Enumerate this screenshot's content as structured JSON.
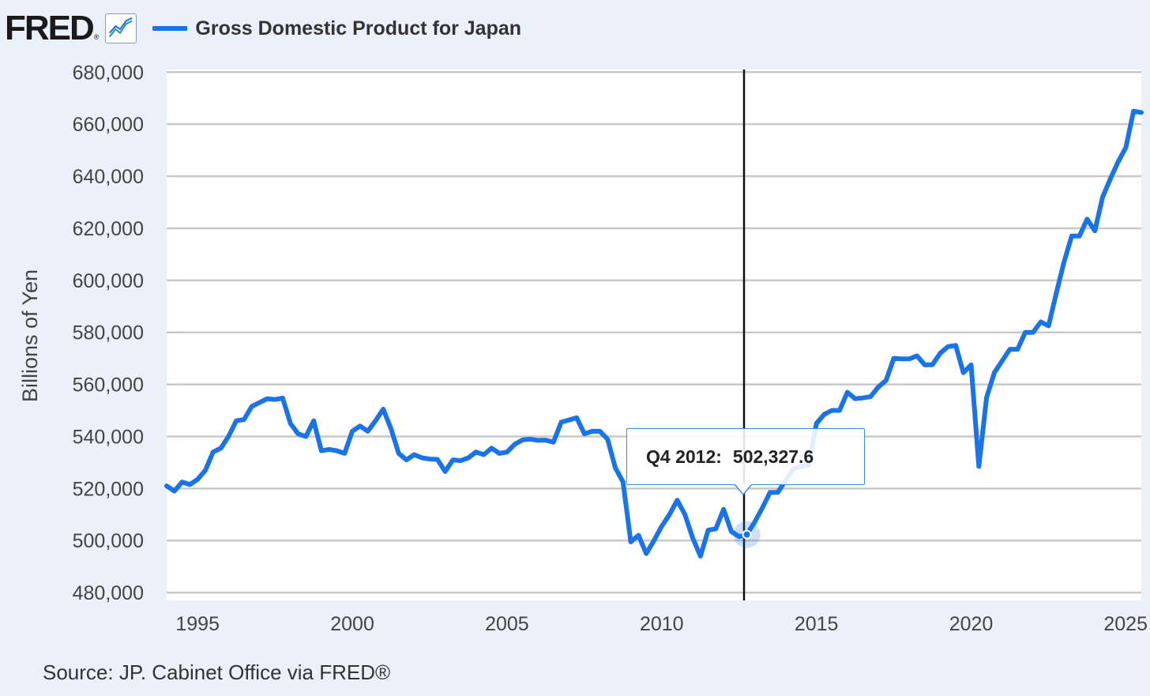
{
  "header": {
    "logo_text": "FRED",
    "logo_reg": "®",
    "logo_icon": "line-graph-icon",
    "legend_label": "Gross Domestic Product for Japan",
    "series_color": "#1a73e8"
  },
  "source_text": "Source: JP. Cabinet Office via FRED®",
  "tooltip": {
    "period": "Q4 2012:",
    "value": "502,327.6"
  },
  "chart_data": {
    "type": "line",
    "title": "Gross Domestic Product for Japan",
    "ylabel": "Billions of Yen",
    "xlabel": "",
    "xlim": [
      1994.0,
      2025.5
    ],
    "ylim": [
      477000,
      681000
    ],
    "x_ticks": [
      1995,
      2000,
      2005,
      2010,
      2015,
      2020,
      2025
    ],
    "y_ticks": [
      480000,
      500000,
      520000,
      540000,
      560000,
      580000,
      600000,
      620000,
      640000,
      660000,
      680000
    ],
    "y_tick_labels": [
      "480,000",
      "500,000",
      "520,000",
      "540,000",
      "560,000",
      "580,000",
      "600,000",
      "620,000",
      "640,000",
      "660,000",
      "680,000"
    ],
    "x_tick_labels": [
      "1995",
      "2000",
      "2005",
      "2010",
      "2015",
      "2020",
      "2025"
    ],
    "grid": "horizontal",
    "legend": "top-left",
    "highlight": {
      "x": 2012.75,
      "y": 502327.6
    },
    "series": [
      {
        "name": "Gross Domestic Product for Japan",
        "color": "#1a73e8",
        "x": [
          1994.0,
          1994.25,
          1994.5,
          1994.75,
          1995.0,
          1995.25,
          1995.5,
          1995.75,
          1996.0,
          1996.25,
          1996.5,
          1996.75,
          1997.0,
          1997.25,
          1997.5,
          1997.75,
          1998.0,
          1998.25,
          1998.5,
          1998.75,
          1999.0,
          1999.25,
          1999.5,
          1999.75,
          2000.0,
          2000.25,
          2000.5,
          2000.75,
          2001.0,
          2001.25,
          2001.5,
          2001.75,
          2002.0,
          2002.25,
          2002.5,
          2002.75,
          2003.0,
          2003.25,
          2003.5,
          2003.75,
          2004.0,
          2004.25,
          2004.5,
          2004.75,
          2005.0,
          2005.25,
          2005.5,
          2005.75,
          2006.0,
          2006.25,
          2006.5,
          2006.75,
          2007.0,
          2007.25,
          2007.5,
          2007.75,
          2008.0,
          2008.25,
          2008.5,
          2008.75,
          2009.0,
          2009.25,
          2009.5,
          2009.75,
          2010.0,
          2010.25,
          2010.5,
          2010.75,
          2011.0,
          2011.25,
          2011.5,
          2011.75,
          2012.0,
          2012.25,
          2012.5,
          2012.75,
          2013.0,
          2013.25,
          2013.5,
          2013.75,
          2014.0,
          2014.25,
          2014.5,
          2014.75,
          2015.0,
          2015.25,
          2015.5,
          2015.75,
          2016.0,
          2016.25,
          2016.5,
          2016.75,
          2017.0,
          2017.25,
          2017.5,
          2017.75,
          2018.0,
          2018.25,
          2018.5,
          2018.75,
          2019.0,
          2019.25,
          2019.5,
          2019.75,
          2020.0,
          2020.25,
          2020.5,
          2020.75,
          2021.0,
          2021.25,
          2021.5,
          2021.75,
          2022.0,
          2022.25,
          2022.5,
          2022.75,
          2023.0,
          2023.25,
          2023.5,
          2023.75,
          2024.0,
          2024.25,
          2024.5,
          2024.75,
          2025.0,
          2025.25,
          2025.5
        ],
        "values": [
          521000,
          519000,
          522500,
          521500,
          523500,
          527000,
          534000,
          535500,
          540000,
          546000,
          546500,
          551500,
          553000,
          554500,
          554200,
          554700,
          545000,
          541000,
          540000,
          546000,
          534500,
          535000,
          534500,
          533500,
          542000,
          544000,
          542000,
          546000,
          550500,
          543000,
          533500,
          531000,
          533000,
          531800,
          531300,
          531200,
          526500,
          531000,
          530700,
          531800,
          534000,
          533000,
          535500,
          533500,
          534000,
          537000,
          538700,
          539000,
          538500,
          538600,
          537800,
          545500,
          546300,
          547200,
          541000,
          542000,
          542000,
          539000,
          528000,
          522500,
          499500,
          502000,
          495000,
          500000,
          505500,
          510000,
          515500,
          510000,
          501000,
          494000,
          504000,
          504500,
          512000,
          503500,
          501500,
          502327.6,
          507000,
          512500,
          518500,
          518500,
          523000,
          527500,
          528500,
          529000,
          545000,
          548500,
          550000,
          550000,
          557000,
          554500,
          554800,
          555300,
          559000,
          561500,
          570000,
          569800,
          569800,
          571000,
          567500,
          567600,
          572000,
          574500,
          575000,
          564500,
          567500,
          528500,
          555000,
          564500,
          569000,
          573500,
          573500,
          580000,
          580000,
          584000,
          582500,
          595000,
          607000,
          617000,
          617000,
          623500,
          619000,
          632000,
          639000,
          645500,
          651000,
          665000,
          664500
        ]
      }
    ]
  }
}
